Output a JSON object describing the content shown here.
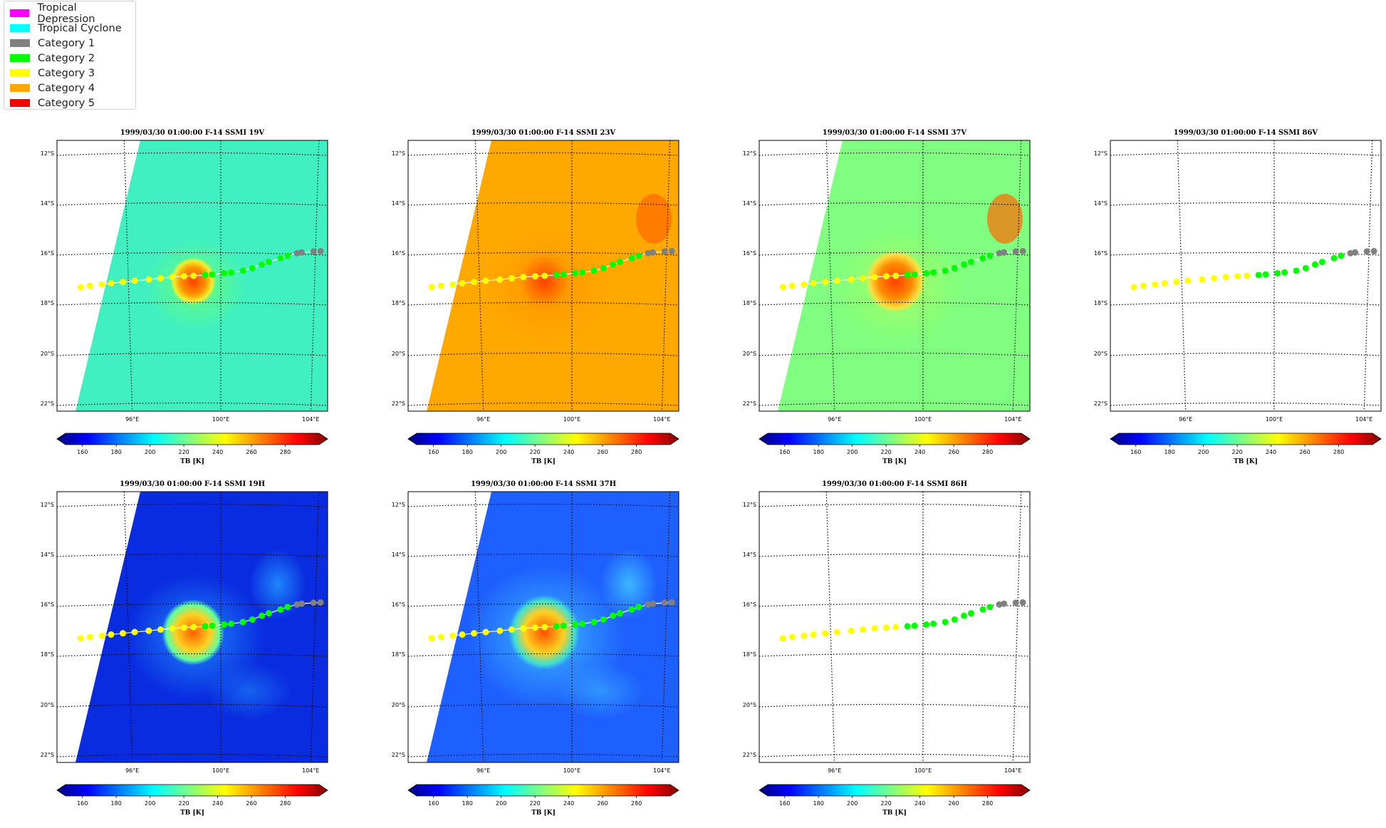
{
  "legend": {
    "items": [
      {
        "label": "Tropical Depression",
        "color": "#ff00ff"
      },
      {
        "label": "Tropical Cyclone",
        "color": "#00ffff"
      },
      {
        "label": "Category 1",
        "color": "#808080"
      },
      {
        "label": "Category 2",
        "color": "#00ff00"
      },
      {
        "label": "Category 3",
        "color": "#ffff00"
      },
      {
        "label": "Category 4",
        "color": "#ffa500"
      },
      {
        "label": "Category 5",
        "color": "#ff0000"
      }
    ]
  },
  "map": {
    "lat_labels": [
      "12°S",
      "14°S",
      "16°S",
      "18°S",
      "20°S",
      "22°S"
    ],
    "lon_labels": [
      "96°E",
      "100°E",
      "104°E"
    ],
    "colorbar_ticks": [
      "160",
      "180",
      "200",
      "220",
      "240",
      "260",
      "280"
    ],
    "colorbar_label": "TB [K]",
    "colormap": "jet",
    "colorbar_range": [
      150,
      300
    ]
  },
  "panels": [
    {
      "title": "1999/03/30 01:00:00  F-14 SSMI 19V",
      "field": "19V"
    },
    {
      "title": "1999/03/30 01:00:00  F-14 SSMI 23V",
      "field": "23V"
    },
    {
      "title": "1999/03/30 01:00:00  F-14 SSMI 37V",
      "field": "37V"
    },
    {
      "title": "1999/03/30 01:00:00  F-14 SSMI 86V",
      "field": "empty"
    },
    {
      "title": "1999/03/30 01:00:00  F-14 SSMI 19H",
      "field": "19H"
    },
    {
      "title": "1999/03/30 01:00:00  F-14 SSMI 37H",
      "field": "37H"
    },
    {
      "title": "1999/03/30 01:00:00  F-14 SSMI 86H",
      "field": "empty"
    }
  ],
  "track": {
    "category_colors": {
      "cat1": "#808080",
      "cat2": "#00ff00",
      "cat3": "#ffff00"
    },
    "points": [
      {
        "lon": 94.0,
        "lat": 17.35,
        "cat": "cat3"
      },
      {
        "lon": 94.4,
        "lat": 17.3,
        "cat": "cat3"
      },
      {
        "lon": 94.9,
        "lat": 17.25,
        "cat": "cat3"
      },
      {
        "lon": 95.3,
        "lat": 17.2,
        "cat": "cat3"
      },
      {
        "lon": 95.8,
        "lat": 17.15,
        "cat": "cat3"
      },
      {
        "lon": 96.3,
        "lat": 17.1,
        "cat": "cat3"
      },
      {
        "lon": 96.9,
        "lat": 17.05,
        "cat": "cat3"
      },
      {
        "lon": 97.4,
        "lat": 17.0,
        "cat": "cat3"
      },
      {
        "lon": 97.9,
        "lat": 16.95,
        "cat": "cat3"
      },
      {
        "lon": 98.4,
        "lat": 16.92,
        "cat": "cat3"
      },
      {
        "lon": 98.8,
        "lat": 16.9,
        "cat": "cat3"
      },
      {
        "lon": 99.3,
        "lat": 16.87,
        "cat": "cat2"
      },
      {
        "lon": 99.6,
        "lat": 16.85,
        "cat": "cat2"
      },
      {
        "lon": 100.1,
        "lat": 16.8,
        "cat": "cat2"
      },
      {
        "lon": 100.4,
        "lat": 16.77,
        "cat": "cat2"
      },
      {
        "lon": 100.9,
        "lat": 16.7,
        "cat": "cat2"
      },
      {
        "lon": 101.3,
        "lat": 16.6,
        "cat": "cat2"
      },
      {
        "lon": 101.7,
        "lat": 16.45,
        "cat": "cat2"
      },
      {
        "lon": 102.0,
        "lat": 16.35,
        "cat": "cat2"
      },
      {
        "lon": 102.5,
        "lat": 16.2,
        "cat": "cat2"
      },
      {
        "lon": 102.8,
        "lat": 16.1,
        "cat": "cat2"
      },
      {
        "lon": 103.2,
        "lat": 16.0,
        "cat": "cat1"
      },
      {
        "lon": 103.4,
        "lat": 15.97,
        "cat": "cat1"
      },
      {
        "lon": 103.9,
        "lat": 15.93,
        "cat": "cat1"
      },
      {
        "lon": 104.2,
        "lat": 15.92,
        "cat": "cat1"
      }
    ]
  }
}
